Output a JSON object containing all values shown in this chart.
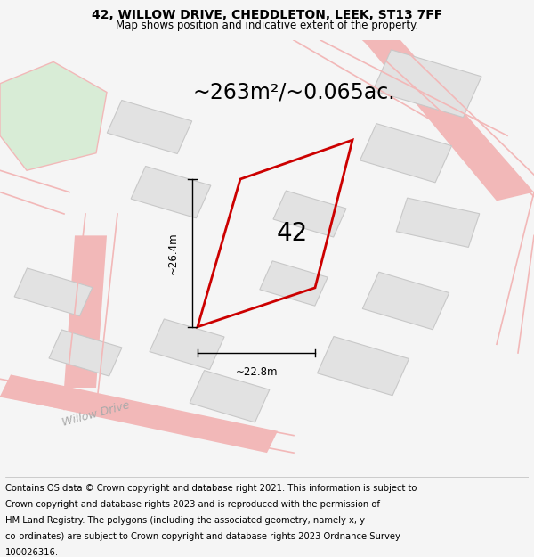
{
  "title": "42, WILLOW DRIVE, CHEDDLETON, LEEK, ST13 7FF",
  "subtitle": "Map shows position and indicative extent of the property.",
  "area_text": "~263m²/~0.065ac.",
  "label_42": "42",
  "dim_width": "~22.8m",
  "dim_height": "~26.4m",
  "road_label": "Willow Drive",
  "footer": "Contains OS data © Crown copyright and database right 2021. This information is subject to Crown copyright and database rights 2023 and is reproduced with the permission of HM Land Registry. The polygons (including the associated geometry, namely x, y co-ordinates) are subject to Crown copyright and database rights 2023 Ordnance Survey 100026316.",
  "bg_color": "#f5f5f5",
  "map_bg": "#ffffff",
  "green_patch_color": "#d8ecd6",
  "gray_building_color": "#e2e2e2",
  "gray_building_edge": "#c8c8c8",
  "pink_road_color": "#f2b8b8",
  "red_plot_color": "#cc0000",
  "dim_line_color": "#000000",
  "title_fontsize": 10,
  "subtitle_fontsize": 8.5,
  "area_fontsize": 17,
  "label_42_fontsize": 20,
  "footer_fontsize": 7.2,
  "road_label_fontsize": 9,
  "footer_line1": "Contains OS data © Crown copyright and database right 2021. This information is subject to",
  "footer_line2": "Crown copyright and database rights 2023 and is reproduced with the permission of",
  "footer_line3": "HM Land Registry. The polygons (including the associated geometry, namely x, y",
  "footer_line4": "co-ordinates) are subject to Crown copyright and database rights 2023 Ordnance Survey",
  "footer_line5": "100026316."
}
